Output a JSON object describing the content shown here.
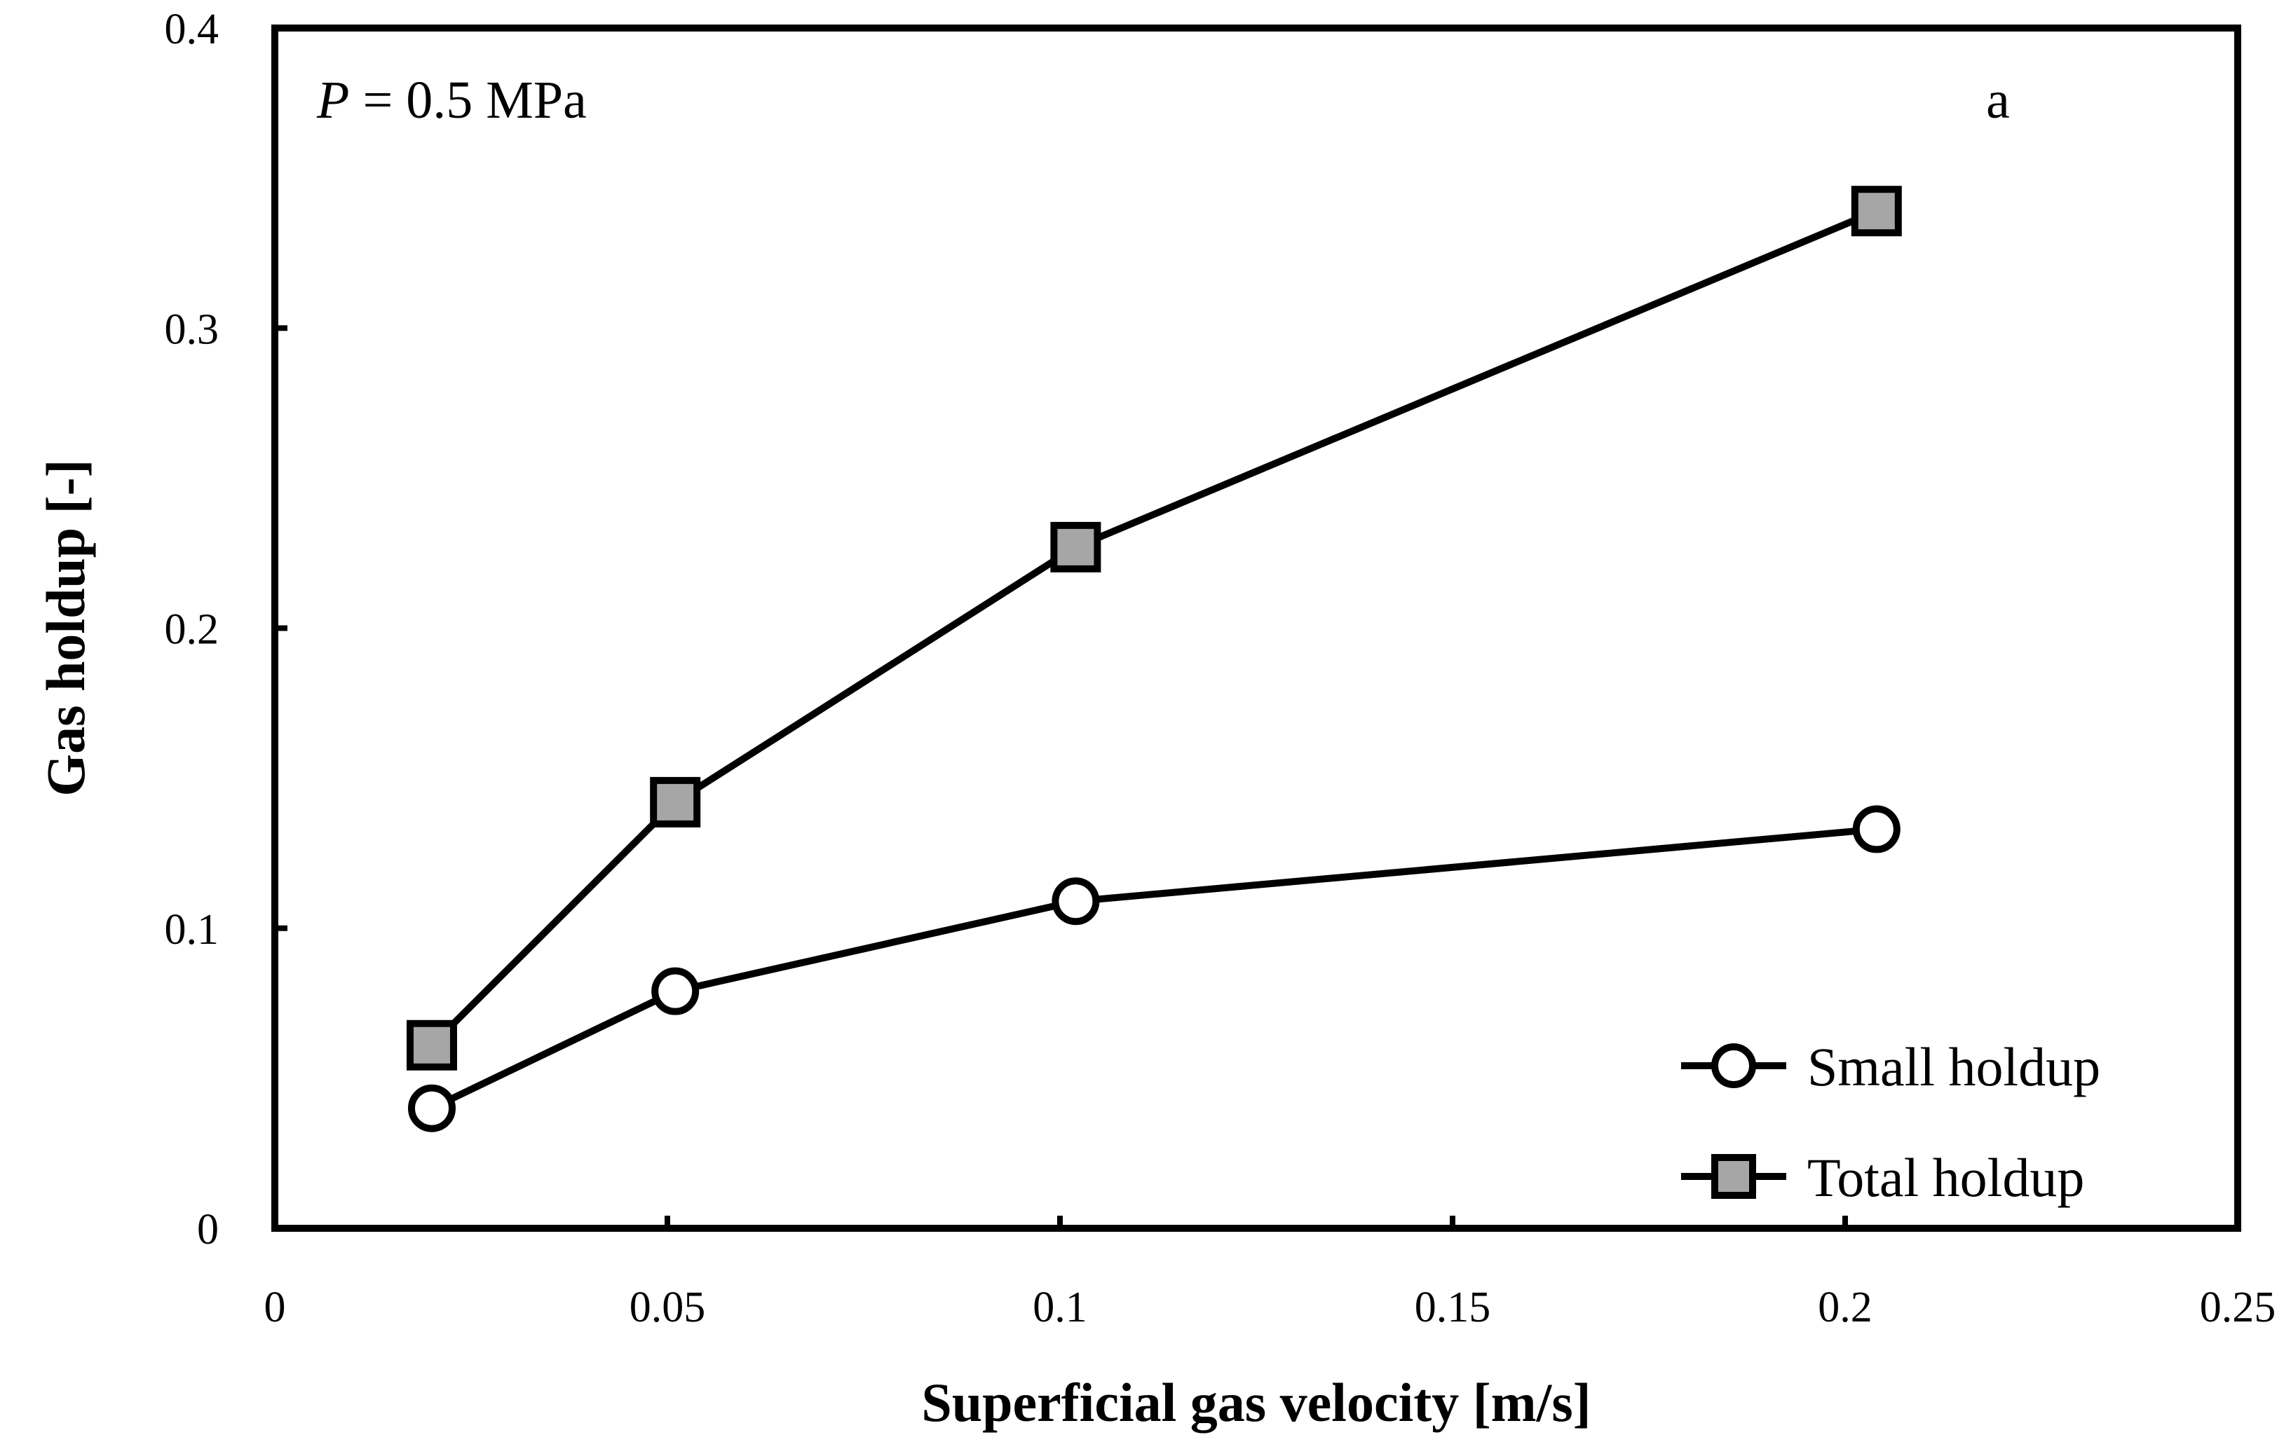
{
  "chart_data": {
    "type": "line",
    "title": "",
    "xlabel": "Superficial gas velocity [m/s]",
    "ylabel": "Gas holdup [-]",
    "xlim": [
      0,
      0.25
    ],
    "ylim": [
      0,
      0.4
    ],
    "xticks": [
      0,
      0.05,
      0.1,
      0.15,
      0.2,
      0.25
    ],
    "yticks": [
      0,
      0.1,
      0.2,
      0.3,
      0.4
    ],
    "xtick_labels": [
      "0",
      "0.05",
      "0.1",
      "0.15",
      "0.2",
      "0.25"
    ],
    "ytick_labels": [
      "0",
      "0.1",
      "0.2",
      "0.3",
      "0.4"
    ],
    "grid": false,
    "legend_position": "bottom-right",
    "annotations": {
      "pressure_symbol": "P",
      "pressure_value": " = 0.5 MPa",
      "panel_label": "a"
    },
    "series": [
      {
        "name": "Small holdup",
        "marker": "circle",
        "marker_color": "#ffffff",
        "line_color": "#000000",
        "x": [
          0.02,
          0.051,
          0.102,
          0.204
        ],
        "y": [
          0.04,
          0.079,
          0.109,
          0.133
        ]
      },
      {
        "name": "Total holdup",
        "marker": "square",
        "marker_color": "#a6a6a6",
        "line_color": "#000000",
        "x": [
          0.02,
          0.051,
          0.102,
          0.204
        ],
        "y": [
          0.061,
          0.142,
          0.227,
          0.339
        ]
      }
    ]
  }
}
